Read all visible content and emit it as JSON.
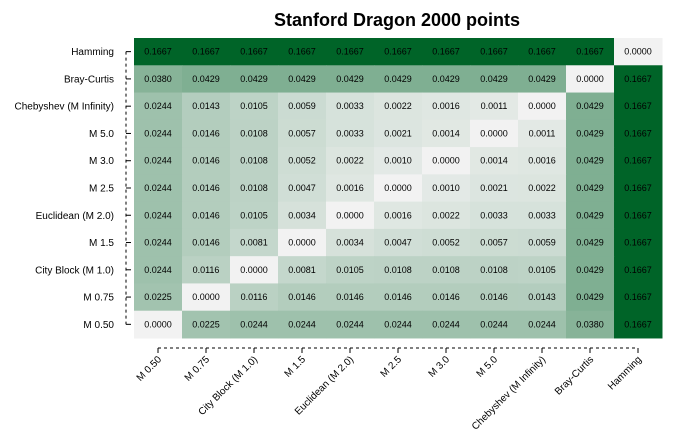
{
  "chart_data": {
    "type": "heatmap",
    "title": "Stanford Dragon 2000 points",
    "xlabel": "",
    "ylabel": "",
    "x_categories": [
      "M 0.50",
      "M 0.75",
      "City Block (M 1.0)",
      "M 1.5",
      "Euclidean (M 2.0)",
      "M 2.5",
      "M 3.0",
      "M 5.0",
      "Chebyshev (M Infinity)",
      "Bray-Curtis",
      "Hamming"
    ],
    "y_categories_top_to_bottom": [
      "Hamming",
      "Bray-Curtis",
      "Chebyshev (M Infinity)",
      "M 5.0",
      "M 3.0",
      "M 2.5",
      "Euclidean (M 2.0)",
      "M 1.5",
      "City Block (M 1.0)",
      "M 0.75",
      "M 0.50"
    ],
    "values": [
      [
        "0.1667",
        "0.1667",
        "0.1667",
        "0.1667",
        "0.1667",
        "0.1667",
        "0.1667",
        "0.1667",
        "0.1667",
        "0.1667",
        "0.0000"
      ],
      [
        "0.0380",
        "0.0429",
        "0.0429",
        "0.0429",
        "0.0429",
        "0.0429",
        "0.0429",
        "0.0429",
        "0.0429",
        "0.0000",
        "0.1667"
      ],
      [
        "0.0244",
        "0.0143",
        "0.0105",
        "0.0059",
        "0.0033",
        "0.0022",
        "0.0016",
        "0.0011",
        "0.0000",
        "0.0429",
        "0.1667"
      ],
      [
        "0.0244",
        "0.0146",
        "0.0108",
        "0.0057",
        "0.0033",
        "0.0021",
        "0.0014",
        "0.0000",
        "0.0011",
        "0.0429",
        "0.1667"
      ],
      [
        "0.0244",
        "0.0146",
        "0.0108",
        "0.0052",
        "0.0022",
        "0.0010",
        "0.0000",
        "0.0014",
        "0.0016",
        "0.0429",
        "0.1667"
      ],
      [
        "0.0244",
        "0.0146",
        "0.0108",
        "0.0047",
        "0.0016",
        "0.0000",
        "0.0010",
        "0.0021",
        "0.0022",
        "0.0429",
        "0.1667"
      ],
      [
        "0.0244",
        "0.0146",
        "0.0105",
        "0.0034",
        "0.0000",
        "0.0016",
        "0.0022",
        "0.0033",
        "0.0033",
        "0.0429",
        "0.1667"
      ],
      [
        "0.0244",
        "0.0146",
        "0.0081",
        "0.0000",
        "0.0034",
        "0.0047",
        "0.0052",
        "0.0057",
        "0.0059",
        "0.0429",
        "0.1667"
      ],
      [
        "0.0244",
        "0.0116",
        "0.0000",
        "0.0081",
        "0.0105",
        "0.0108",
        "0.0108",
        "0.0108",
        "0.0105",
        "0.0429",
        "0.1667"
      ],
      [
        "0.0225",
        "0.0000",
        "0.0116",
        "0.0146",
        "0.0146",
        "0.0146",
        "0.0146",
        "0.0146",
        "0.0143",
        "0.0429",
        "0.1667"
      ],
      [
        "0.0000",
        "0.0225",
        "0.0244",
        "0.0244",
        "0.0244",
        "0.0244",
        "0.0244",
        "0.0244",
        "0.0244",
        "0.0380",
        "0.1667"
      ]
    ],
    "color_low": "#f2f2f2",
    "color_high": "#006428",
    "grid": false,
    "legend": "none"
  }
}
